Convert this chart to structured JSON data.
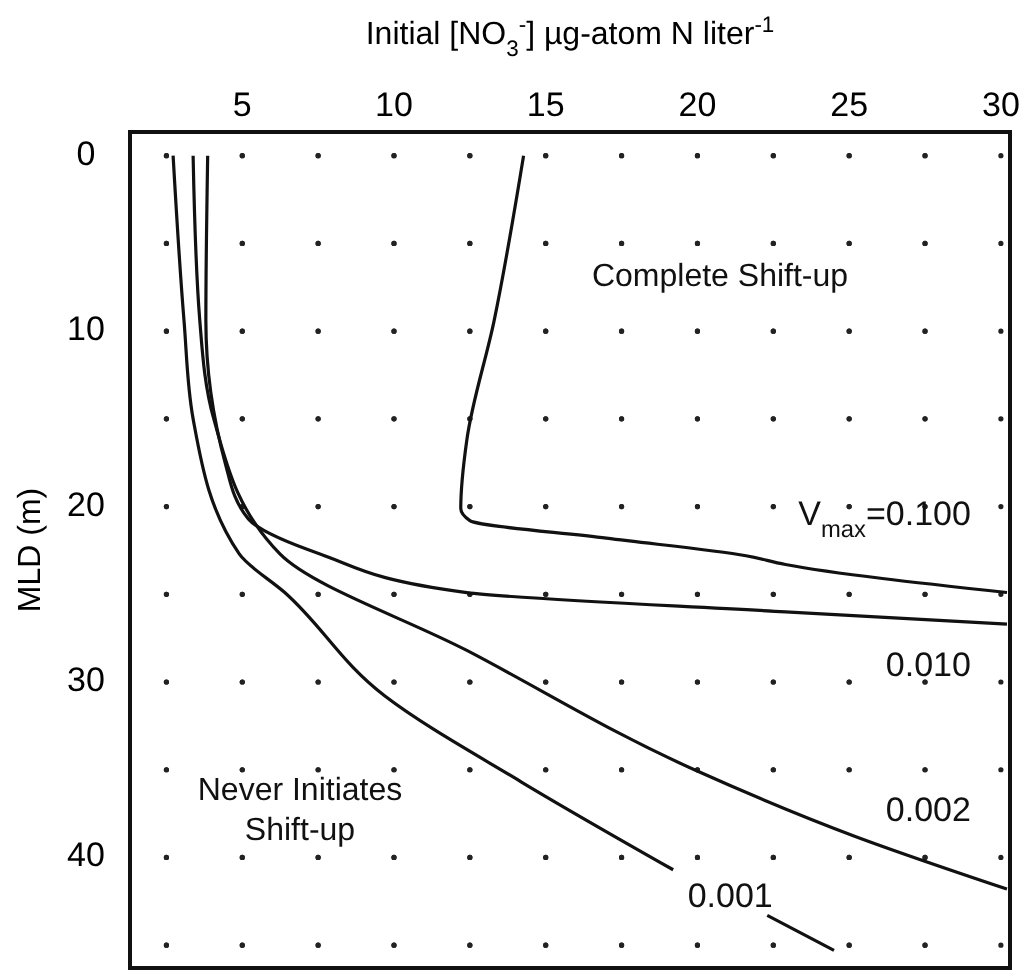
{
  "chart_data": {
    "type": "line",
    "xlabel": "Initial [NO$_{3}$$^{-}$] µg-atom N liter$^{-1}$",
    "ylabel": "MLD (m)",
    "xlim": [
      1.3,
      30.3
    ],
    "ylim": [
      46.3,
      -1.35
    ],
    "xticks": [
      {
        "value": 2.5,
        "label": null
      },
      5,
      {
        "value": 7.5,
        "label": null
      },
      10,
      {
        "value": 12.5,
        "label": null
      },
      15,
      {
        "value": 17.5,
        "label": null
      },
      20,
      {
        "value": 22.5,
        "label": null
      },
      25,
      {
        "value": 27.5,
        "label": null
      },
      30
    ],
    "yticks": [
      0,
      {
        "value": 5,
        "label": null
      },
      10,
      {
        "value": 15,
        "label": null
      },
      20,
      {
        "value": 25,
        "label": null
      },
      30,
      {
        "value": 35,
        "label": null
      },
      40,
      {
        "value": 45,
        "label": null
      }
    ],
    "grid": true,
    "legend": false,
    "marker": "none",
    "line_style": "solid",
    "series": [
      {
        "name": "V$_{max}$=0.100",
        "color": "#111111",
        "x": [
          14.27,
          13.3,
          12.4,
          12.2,
          12.5,
          17,
          21.6,
          22.9,
          30.2
        ],
        "values": [
          0,
          9.4,
          16.2,
          20.1,
          20.8,
          21.8,
          22.8,
          23.3,
          24.9
        ]
      },
      {
        "name": "0.010",
        "color": "#111111",
        "x": [
          3.86,
          3.8,
          4.45,
          5.2,
          7.56,
          12.4,
          22.9,
          30.2
        ],
        "values": [
          0,
          9.4,
          17.6,
          20.7,
          22.7,
          24.9,
          26,
          26.7
        ]
      },
      {
        "name": "0.002",
        "color": "#111111",
        "x": [
          3.38,
          3.6,
          4.06,
          6.24,
          12.4,
          19.9,
          25.2,
          30.2
        ],
        "values": [
          0,
          9.4,
          15,
          22.7,
          28.2,
          35,
          38.8,
          41.8
        ]
      },
      {
        "name": "0.001",
        "color": "#111111",
        "x": [
          2.72,
          3.08,
          3.38,
          4.9,
          6.4,
          9.7,
          14.2,
          19.2,
          null,
          22.3,
          24.5
        ],
        "values": [
          0,
          9.4,
          15,
          22.7,
          24.9,
          30.8,
          35.7,
          40.7,
          null,
          43.3,
          45.3
        ]
      }
    ],
    "annotations": [
      "Complete Shift-up",
      "Never Initiates\nShift-up"
    ]
  }
}
